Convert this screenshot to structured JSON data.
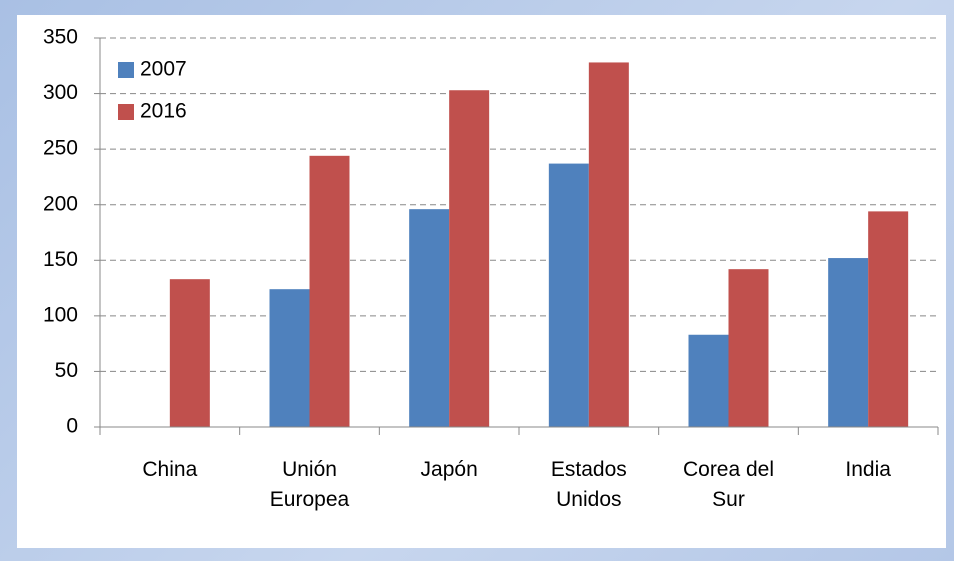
{
  "chart_data": {
    "type": "bar",
    "categories": [
      "China",
      "Unión\nEuropea",
      "Japón",
      "Estados\nUnidos",
      "Corea del\nSur",
      "India"
    ],
    "series": [
      {
        "name": "2007",
        "color": "#4f81bd",
        "values": [
          null,
          124,
          196,
          237,
          83,
          152
        ]
      },
      {
        "name": "2016",
        "color": "#c0504d",
        "values": [
          133,
          244,
          303,
          328,
          142,
          194
        ]
      }
    ],
    "ylim": [
      0,
      350
    ],
    "yticks": [
      0,
      50,
      100,
      150,
      200,
      250,
      300,
      350
    ],
    "grid": true,
    "legend": "top-left"
  }
}
